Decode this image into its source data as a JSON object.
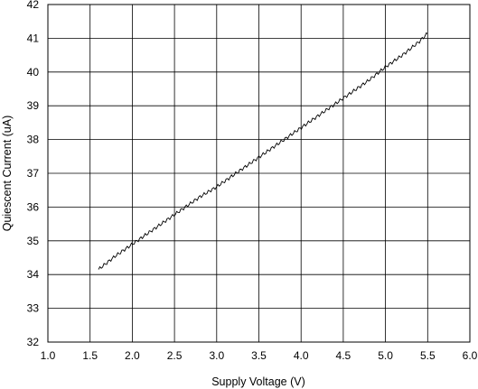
{
  "chart_data": {
    "type": "line",
    "title": "",
    "xlabel": "Supply Voltage (V)",
    "ylabel": "Quiescent Current (uA)",
    "xlim": [
      1.0,
      6.0
    ],
    "ylim": [
      32,
      42
    ],
    "x_ticks": [
      "1.0",
      "1.5",
      "2.0",
      "2.5",
      "3.0",
      "3.5",
      "4.0",
      "4.5",
      "5.0",
      "5.5",
      "6.0"
    ],
    "y_ticks": [
      "32",
      "33",
      "34",
      "35",
      "36",
      "37",
      "38",
      "39",
      "40",
      "41",
      "42"
    ],
    "grid": true,
    "series": [
      {
        "x": [
          1.6,
          1.8,
          2.0,
          2.2,
          2.4,
          2.6,
          2.8,
          3.0,
          3.2,
          3.4,
          3.6,
          3.8,
          4.0,
          4.2,
          4.4,
          4.6,
          4.8,
          5.0,
          5.2,
          5.4,
          5.5
        ],
        "y": [
          34.15,
          34.55,
          34.9,
          35.25,
          35.6,
          35.95,
          36.3,
          36.6,
          36.95,
          37.3,
          37.65,
          38.0,
          38.35,
          38.7,
          39.05,
          39.4,
          39.75,
          40.15,
          40.5,
          40.9,
          41.15
        ]
      }
    ],
    "colors": {
      "line": "#000000",
      "grid": "#000000",
      "background": "#ffffff"
    }
  }
}
